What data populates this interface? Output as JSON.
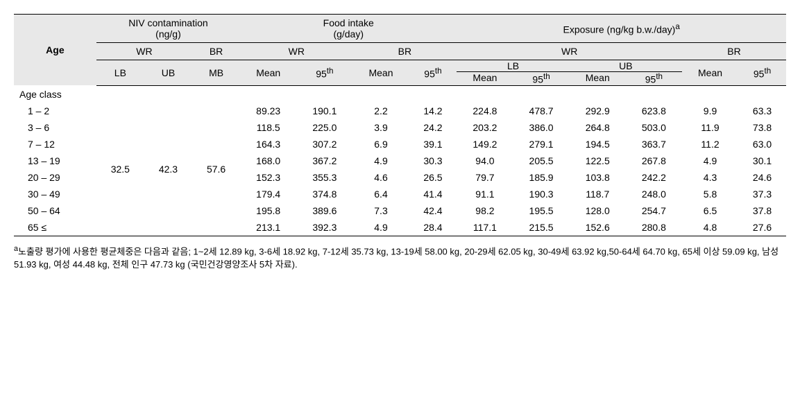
{
  "headers": {
    "age": "Age",
    "niv": "NIV contamination\n(ng/g)",
    "food": "Food intake\n(g/day)",
    "exposure": "Exposure (ng/kg b.w./day)",
    "exposure_sup": "a",
    "wr": "WR",
    "br": "BR",
    "lb": "LB",
    "ub": "UB",
    "mb": "MB",
    "mean": "Mean",
    "p95": "95",
    "p95_sup": "th",
    "age_class": "Age class"
  },
  "contamination": {
    "wr_lb": "32.5",
    "wr_ub": "42.3",
    "br_mb": "57.6"
  },
  "rows": [
    {
      "age": "1 – 2",
      "fi_wr_mean": "89.23",
      "fi_wr_95": "190.1",
      "fi_br_mean": "2.2",
      "fi_br_95": "14.2",
      "ex_wr_lb_mean": "224.8",
      "ex_wr_lb_95": "478.7",
      "ex_wr_ub_mean": "292.9",
      "ex_wr_ub_95": "623.8",
      "ex_br_mean": "9.9",
      "ex_br_95": "63.3"
    },
    {
      "age": "3 – 6",
      "fi_wr_mean": "118.5",
      "fi_wr_95": "225.0",
      "fi_br_mean": "3.9",
      "fi_br_95": "24.2",
      "ex_wr_lb_mean": "203.2",
      "ex_wr_lb_95": "386.0",
      "ex_wr_ub_mean": "264.8",
      "ex_wr_ub_95": "503.0",
      "ex_br_mean": "11.9",
      "ex_br_95": "73.8"
    },
    {
      "age": "7 – 12",
      "fi_wr_mean": "164.3",
      "fi_wr_95": "307.2",
      "fi_br_mean": "6.9",
      "fi_br_95": "39.1",
      "ex_wr_lb_mean": "149.2",
      "ex_wr_lb_95": "279.1",
      "ex_wr_ub_mean": "194.5",
      "ex_wr_ub_95": "363.7",
      "ex_br_mean": "11.2",
      "ex_br_95": "63.0"
    },
    {
      "age": "13 – 19",
      "fi_wr_mean": "168.0",
      "fi_wr_95": "367.2",
      "fi_br_mean": "4.9",
      "fi_br_95": "30.3",
      "ex_wr_lb_mean": "94.0",
      "ex_wr_lb_95": "205.5",
      "ex_wr_ub_mean": "122.5",
      "ex_wr_ub_95": "267.8",
      "ex_br_mean": "4.9",
      "ex_br_95": "30.1"
    },
    {
      "age": "20 – 29",
      "fi_wr_mean": "152.3",
      "fi_wr_95": "355.3",
      "fi_br_mean": "4.6",
      "fi_br_95": "26.5",
      "ex_wr_lb_mean": "79.7",
      "ex_wr_lb_95": "185.9",
      "ex_wr_ub_mean": "103.8",
      "ex_wr_ub_95": "242.2",
      "ex_br_mean": "4.3",
      "ex_br_95": "24.6"
    },
    {
      "age": "30 – 49",
      "fi_wr_mean": "179.4",
      "fi_wr_95": "374.8",
      "fi_br_mean": "6.4",
      "fi_br_95": "41.4",
      "ex_wr_lb_mean": "91.1",
      "ex_wr_lb_95": "190.3",
      "ex_wr_ub_mean": "118.7",
      "ex_wr_ub_95": "248.0",
      "ex_br_mean": "5.8",
      "ex_br_95": "37.3"
    },
    {
      "age": "50 – 64",
      "fi_wr_mean": "195.8",
      "fi_wr_95": "389.6",
      "fi_br_mean": "7.3",
      "fi_br_95": "42.4",
      "ex_wr_lb_mean": "98.2",
      "ex_wr_lb_95": "195.5",
      "ex_wr_ub_mean": "128.0",
      "ex_wr_ub_95": "254.7",
      "ex_br_mean": "6.5",
      "ex_br_95": "37.8"
    },
    {
      "age": "65 ≤",
      "fi_wr_mean": "213.1",
      "fi_wr_95": "392.3",
      "fi_br_mean": "4.9",
      "fi_br_95": "28.4",
      "ex_wr_lb_mean": "117.1",
      "ex_wr_lb_95": "215.5",
      "ex_wr_ub_mean": "152.6",
      "ex_wr_ub_95": "280.8",
      "ex_br_mean": "4.8",
      "ex_br_95": "27.6"
    }
  ],
  "footnote": {
    "sup": "a",
    "text": "노출량 평가에 사용한 평균체중은 다음과 같음; 1~2세 12.89 kg, 3-6세 18.92 kg, 7-12세 35.73 kg, 13-19세 58.00 kg, 20-29세 62.05 kg, 30-49세 63.92 kg,50-64세 64.70 kg, 65세 이상 59.09 kg, 남성 51.93 kg, 여성 44.48 kg, 전체 인구 47.73 kg (국민건강영양조사 5차 자료)."
  }
}
